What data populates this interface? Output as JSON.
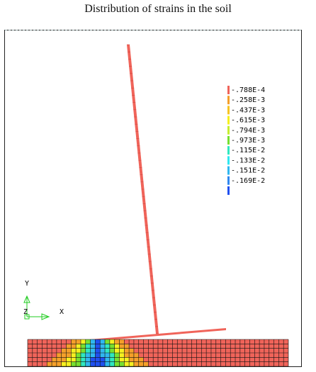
{
  "title": "Distribution of strains in the soil",
  "legend": {
    "entries": [
      {
        "label": "-.788E-4",
        "color": "#f0645a"
      },
      {
        "label": "-.258E-3",
        "color": "#f5a02a"
      },
      {
        "label": "-.437E-3",
        "color": "#f7c524"
      },
      {
        "label": "-.615E-3",
        "color": "#f6f020"
      },
      {
        "label": "-.794E-3",
        "color": "#c8ee30"
      },
      {
        "label": "-.973E-3",
        "color": "#78e030"
      },
      {
        "label": "-.115E-2",
        "color": "#30e8c0"
      },
      {
        "label": "-.133E-2",
        "color": "#30e8f0"
      },
      {
        "label": "-.151E-2",
        "color": "#30b8f0"
      },
      {
        "label": "-.169E-2",
        "color": "#3088f0"
      },
      {
        "label": "",
        "color": "#2050f0"
      }
    ]
  },
  "triad": {
    "y_label": "Y",
    "z_label": "Z",
    "x_label": "X",
    "color": "#22cc22"
  },
  "colors": {
    "structure": "#f0645a",
    "soil_base": "#f0645a",
    "mesh_lines": "#111111"
  }
}
